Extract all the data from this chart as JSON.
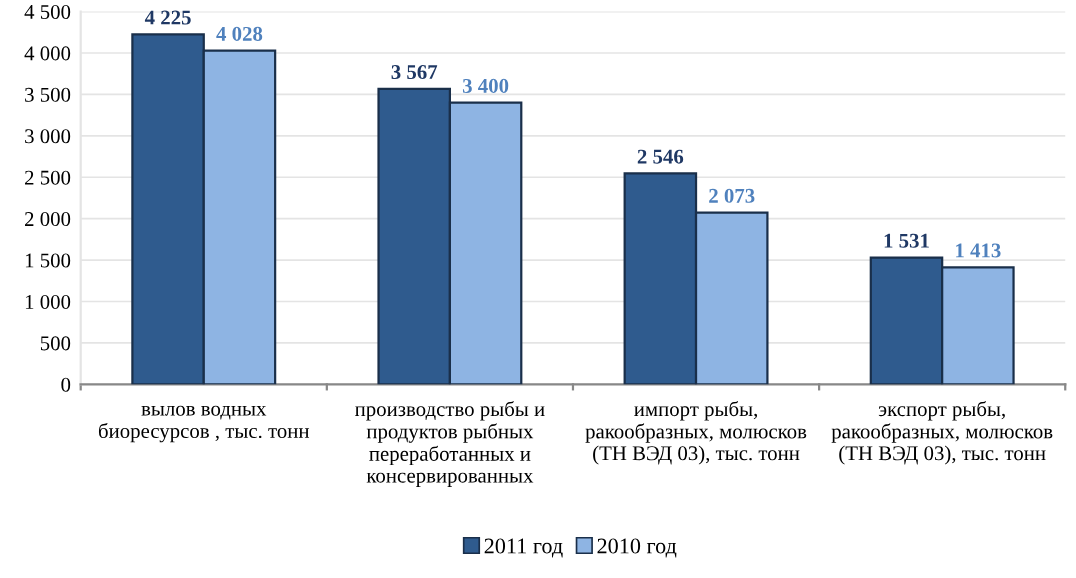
{
  "chart_data": {
    "type": "bar",
    "categories": [
      "вылов водных\nбиоресурсов , тыс. тонн",
      "производство рыбы и\nпродуктов рыбных\nпереработанных и\nконсервированных",
      "импорт рыбы,\nракообразных, молюсков\n(ТН ВЭД 03), тыс. тонн",
      "экспорт рыбы,\nракообразных, молюсков\n(ТН ВЭД 03), тыс. тонн"
    ],
    "series": [
      {
        "name": "2011 год",
        "color": "#2f5b8e",
        "values": [
          4225,
          3567,
          2546,
          1531
        ],
        "value_labels": [
          "4 225",
          "3 567",
          "2 546",
          "1 531"
        ]
      },
      {
        "name": "2010 год",
        "color": "#8eb4e3",
        "values": [
          4028,
          3400,
          2073,
          1413
        ],
        "value_labels": [
          "4 028",
          "3 400",
          "2 073",
          "1 413"
        ]
      }
    ],
    "ylim": [
      0,
      4500
    ],
    "yticks": [
      0,
      500,
      {
        "value": 1000,
        "label": "1 000"
      },
      {
        "value": 1500,
        "label": "1 500"
      },
      {
        "value": 2000,
        "label": "2 000"
      },
      {
        "value": 2500,
        "label": "2 500"
      },
      {
        "value": 3000,
        "label": "3 000"
      },
      {
        "value": 3500,
        "label": "3 500"
      },
      {
        "value": 4000,
        "label": "4 000"
      },
      {
        "value": 4500,
        "label": "4 500"
      }
    ],
    "grid": "y",
    "legend": "bottom"
  }
}
